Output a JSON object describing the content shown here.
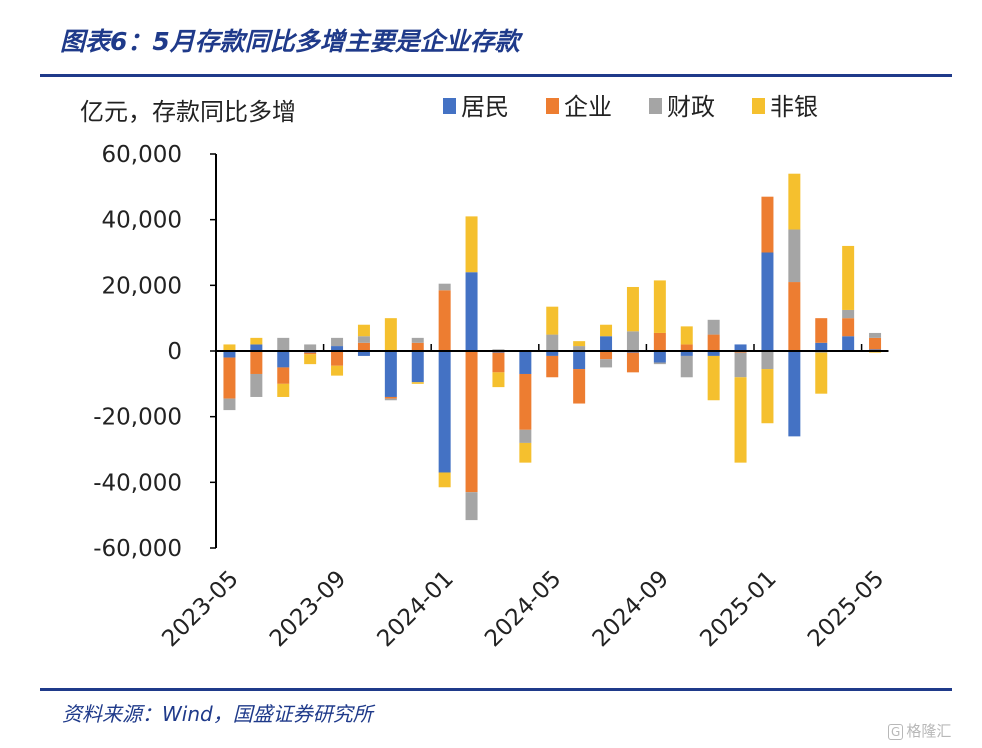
{
  "header": {
    "title": "图表6：5月存款同比多增主要是企业存款"
  },
  "footer": {
    "source": "资料来源：Wind，国盛证券研究所",
    "watermark": "格隆汇",
    "watermark_logo": "G"
  },
  "colors": {
    "rule": "#1f3a8a",
    "居民": "#4472c4",
    "企业": "#ed7d31",
    "财政": "#a5a5a5",
    "非银": "#f5c02e"
  },
  "chart_data": {
    "type": "bar",
    "stacked": true,
    "ylabel": "亿元，存款同比多增",
    "ylim": [
      -60000,
      60000
    ],
    "yticks": [
      60000,
      40000,
      20000,
      0,
      -20000,
      -40000,
      -60000
    ],
    "ytick_labels": [
      "60,000",
      "40,000",
      "20,000",
      "0",
      "-20,000",
      "-40,000",
      "-60,000"
    ],
    "legend_position": "top",
    "categories": [
      "2023-05",
      "2023-06",
      "2023-07",
      "2023-08",
      "2023-09",
      "2023-10",
      "2023-11",
      "2023-12",
      "2024-01",
      "2024-02",
      "2024-03",
      "2024-04",
      "2024-05",
      "2024-06",
      "2024-07",
      "2024-08",
      "2024-09",
      "2024-10",
      "2024-11",
      "2024-12",
      "2025-01",
      "2025-02",
      "2025-03",
      "2025-04",
      "2025-05"
    ],
    "xtick_labels": [
      "2023-05",
      "2023-09",
      "2024-01",
      "2024-05",
      "2024-09",
      "2025-01",
      "2025-05"
    ],
    "xtick_every": 4,
    "series": [
      {
        "name": "居民",
        "values": [
          -2000,
          2000,
          -5000,
          -500,
          1500,
          -1500,
          -14000,
          -9500,
          -37000,
          24000,
          -500,
          -7000,
          -1500,
          -5500,
          4500,
          -500,
          -3500,
          -1500,
          -1500,
          2000,
          30000,
          -26000,
          2500,
          4500,
          500
        ]
      },
      {
        "name": "企业",
        "values": [
          -12500,
          -7000,
          -5000,
          -500,
          -4500,
          2500,
          -500,
          2500,
          18500,
          -43000,
          -6000,
          -17000,
          -6500,
          -10500,
          -2500,
          -6000,
          5500,
          2000,
          5000,
          -500,
          17000,
          21000,
          7500,
          5500,
          3500
        ]
      },
      {
        "name": "财政",
        "values": [
          -3500,
          -7000,
          4000,
          2000,
          2500,
          2000,
          -500,
          1500,
          2000,
          -8500,
          500,
          -4000,
          5000,
          1500,
          -2500,
          6000,
          -500,
          -6500,
          4500,
          -7500,
          -5500,
          16000,
          -500,
          2500,
          1500
        ]
      },
      {
        "name": "非银",
        "values": [
          2000,
          2000,
          -4000,
          -3000,
          -3000,
          3500,
          10000,
          -500,
          -4500,
          17000,
          -4500,
          -6000,
          8500,
          1500,
          3500,
          13500,
          16000,
          5500,
          -13500,
          -26000,
          -16500,
          17000,
          -12500,
          19500,
          -500
        ]
      }
    ]
  }
}
